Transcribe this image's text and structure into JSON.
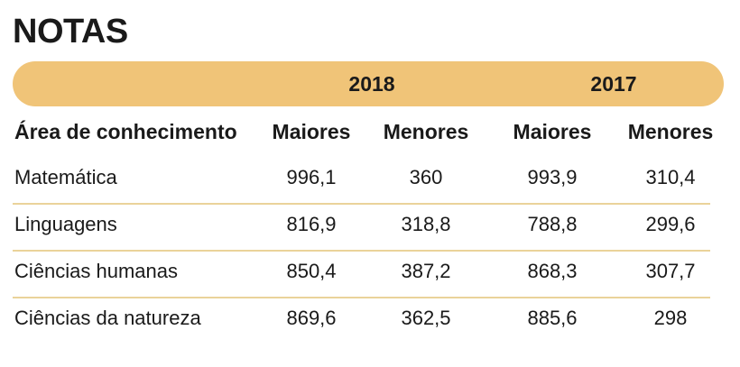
{
  "title": "NOTAS",
  "chart_data": {
    "type": "table",
    "title": "NOTAS",
    "years": [
      "2018",
      "2017"
    ],
    "columns": [
      "Área de conhecimento",
      "Maiores",
      "Menores",
      "Maiores",
      "Menores"
    ],
    "rows": [
      {
        "area": "Matemática",
        "values": [
          "996,1",
          "360",
          "993,9",
          "310,4"
        ]
      },
      {
        "area": "Linguagens",
        "values": [
          "816,9",
          "318,8",
          "788,8",
          "299,6"
        ]
      },
      {
        "area": "Ciências humanas",
        "values": [
          "850,4",
          "387,2",
          "868,3",
          "307,7"
        ]
      },
      {
        "area": "Ciências da natureza",
        "values": [
          "869,6",
          "362,5",
          "885,6",
          "298"
        ]
      }
    ]
  },
  "colors": {
    "header_bar": "#F0C478",
    "divider": "#EAD39A"
  }
}
